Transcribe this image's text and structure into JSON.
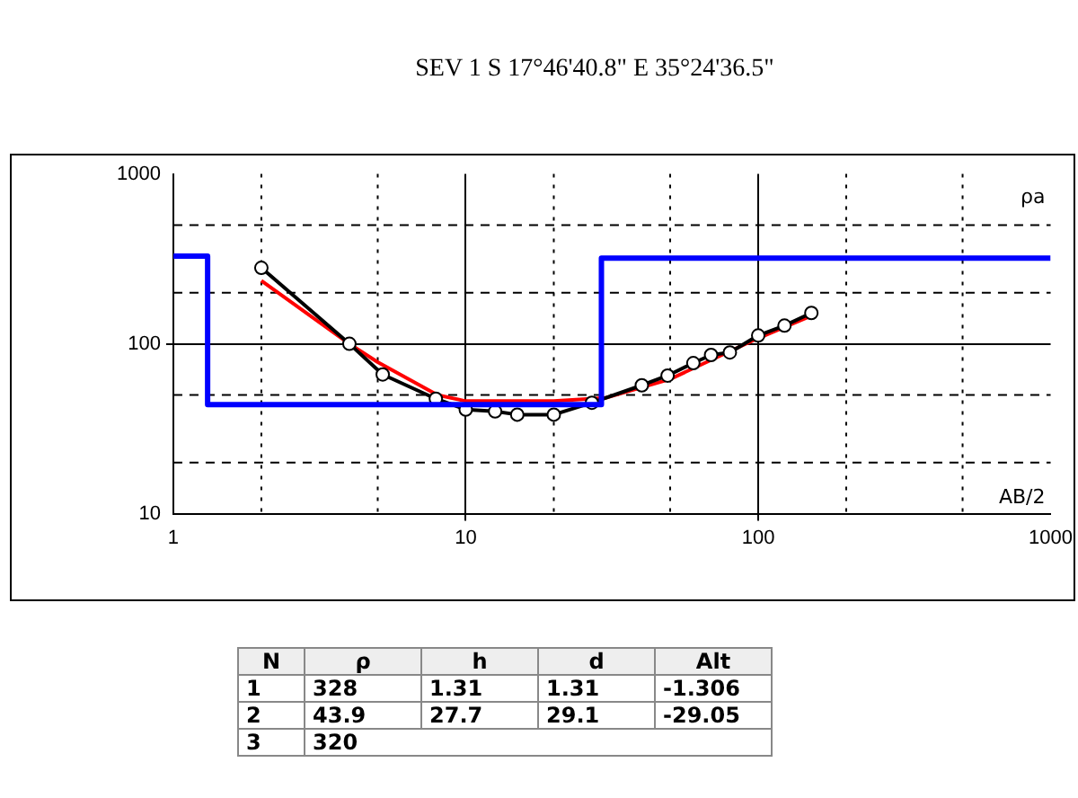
{
  "chart_data": {
    "type": "line",
    "title": "SEV 1 S 17°46'40.8\" E 35°24'36.5\"",
    "xlabel": "AB/2",
    "ylabel": "ρa",
    "log": "xy",
    "grid": true,
    "legend": false,
    "xlim": [
      1,
      1000
    ],
    "ylim": [
      10,
      1000
    ],
    "xticks": [
      1,
      {
        "value": 2,
        "label": null
      },
      {
        "value": 5,
        "label": null
      },
      10,
      {
        "value": 20,
        "label": null
      },
      {
        "value": 50,
        "label": null
      },
      100,
      {
        "value": 200,
        "label": null
      },
      {
        "value": 500,
        "label": null
      },
      1000
    ],
    "yticks": [
      10,
      {
        "value": 20,
        "label": null
      },
      {
        "value": 50,
        "label": null
      },
      100,
      {
        "value": 200,
        "label": null
      },
      {
        "value": 500,
        "label": null
      },
      1000
    ],
    "series": [
      {
        "type": "step",
        "color": "#0000ff",
        "x": [
          1,
          1.31,
          29.1,
          1000
        ],
        "values": [
          328,
          43.9,
          320,
          320
        ]
      },
      {
        "type": "line",
        "color": "#000000",
        "marker": "circle",
        "x": [
          2,
          4,
          5.2,
          7.9,
          10,
          12.6,
          15,
          20,
          27,
          40,
          49,
          60,
          69,
          80,
          100,
          123,
          152
        ],
        "values": [
          280,
          100,
          66,
          47.5,
          41,
          40,
          38.3,
          38.3,
          45,
          57,
          65,
          77,
          86,
          89,
          112,
          128,
          152
        ]
      },
      {
        "type": "line",
        "color": "#ff0000",
        "marker": "none",
        "x": [
          2,
          4,
          5,
          8,
          10,
          20,
          30,
          50,
          100,
          150
        ],
        "values": [
          235,
          100,
          78,
          50,
          46,
          46,
          48,
          62,
          108,
          145
        ]
      }
    ],
    "annotations": [
      "N\tρ\th\td\tAlt",
      "1\t328\t1.31\t1.31\t-1.306",
      "2\t43.9\t27.7\t29.1\t-29.05",
      "3\t320"
    ]
  }
}
